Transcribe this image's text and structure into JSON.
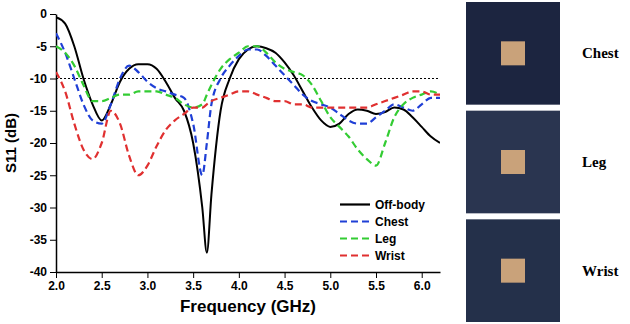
{
  "chart_data": {
    "type": "line",
    "x_label": "Frequency (GHz)",
    "y_label": "S11 (dB)",
    "x": [
      2.0,
      2.1,
      2.2,
      2.3,
      2.4,
      2.5,
      2.6,
      2.7,
      2.8,
      2.9,
      3.0,
      3.1,
      3.2,
      3.3,
      3.4,
      3.5,
      3.6,
      3.65,
      3.7,
      3.8,
      3.9,
      4.0,
      4.1,
      4.2,
      4.3,
      4.4,
      4.5,
      4.6,
      4.7,
      4.8,
      4.9,
      5.0,
      5.1,
      5.2,
      5.3,
      5.4,
      5.5,
      5.6,
      5.7,
      5.8,
      5.9,
      6.0,
      6.1,
      6.2
    ],
    "series": [
      {
        "name": "Off-body",
        "color": "#000000",
        "line_style": "solid",
        "values": [
          -0.5,
          -1.5,
          -5,
          -10,
          -14,
          -16.5,
          -14,
          -10.5,
          -8.5,
          -7.8,
          -7.8,
          -8.5,
          -10.5,
          -13,
          -15,
          -20,
          -30,
          -37,
          -28,
          -15,
          -10,
          -7,
          -5.5,
          -5,
          -5.3,
          -6,
          -7.5,
          -9.5,
          -12,
          -14.5,
          -16.5,
          -17.5,
          -17,
          -15.5,
          -14.8,
          -15,
          -15.5,
          -15.2,
          -14.5,
          -14.8,
          -16,
          -17.5,
          -19,
          -20
        ]
      },
      {
        "name": "Chest",
        "color": "#1f3fd6",
        "line_style": "dashed",
        "values": [
          -3,
          -6,
          -10,
          -14,
          -16.5,
          -17,
          -14,
          -10,
          -8,
          -9,
          -10.5,
          -11.5,
          -12,
          -12.5,
          -13,
          -17,
          -25,
          -20,
          -14,
          -10,
          -8,
          -6.5,
          -5.5,
          -5.5,
          -6.5,
          -8,
          -9.5,
          -11,
          -12.5,
          -13.5,
          -14,
          -14.5,
          -15.5,
          -16.5,
          -17,
          -17,
          -16,
          -15,
          -14,
          -14.5,
          -15,
          -14,
          -13,
          -13
        ]
      },
      {
        "name": "Leg",
        "color": "#33cc33",
        "line_style": "dashed",
        "values": [
          -5,
          -6,
          -8,
          -11,
          -13.5,
          -13.5,
          -13,
          -12.5,
          -12.5,
          -12,
          -12,
          -12,
          -12.5,
          -13,
          -14,
          -14.5,
          -14,
          -12.5,
          -11,
          -8.5,
          -7,
          -6,
          -5,
          -5,
          -6,
          -7.5,
          -8.5,
          -9,
          -9.5,
          -11,
          -13.5,
          -16,
          -17.5,
          -19,
          -21,
          -22.5,
          -23.5,
          -20,
          -16,
          -14,
          -13,
          -12.5,
          -12,
          -12.5
        ]
      },
      {
        "name": "Wrist",
        "color": "#e03030",
        "line_style": "dashed",
        "values": [
          -9,
          -12,
          -17,
          -21,
          -22.5,
          -20,
          -15,
          -17,
          -22,
          -25,
          -23.5,
          -20.5,
          -18,
          -16.5,
          -15.5,
          -14.5,
          -14.5,
          -14,
          -13.5,
          -13,
          -12.5,
          -12,
          -12,
          -12.5,
          -13,
          -13.5,
          -13.5,
          -14,
          -14,
          -14.5,
          -14.5,
          -14.5,
          -14.5,
          -14.5,
          -14.5,
          -14.5,
          -14,
          -13.5,
          -13,
          -12.5,
          -12,
          -12,
          -12.5,
          -12.5
        ]
      }
    ],
    "xlim": [
      2.0,
      6.2
    ],
    "xticks": [
      {
        "value": 2.0,
        "label": "2.0"
      },
      {
        "value": 2.5,
        "label": "2.5"
      },
      {
        "value": 3.0,
        "label": "3.0"
      },
      {
        "value": 3.5,
        "label": "3.5"
      },
      {
        "value": 4.0,
        "label": "4.0"
      },
      {
        "value": 4.5,
        "label": "4.5"
      },
      {
        "value": 5.0,
        "label": "5.0"
      },
      {
        "value": 5.5,
        "label": "5.5"
      },
      {
        "value": 6.0,
        "label": "6.0"
      }
    ],
    "ylim": [
      -40,
      0
    ],
    "yticks": [
      0,
      -5,
      -10,
      -15,
      -20,
      -25,
      -30,
      -35,
      -40
    ],
    "reference_line": -10,
    "legend": "lower right",
    "grid": false,
    "annotations": [
      "Chest",
      "Leg",
      "Wrist"
    ]
  }
}
